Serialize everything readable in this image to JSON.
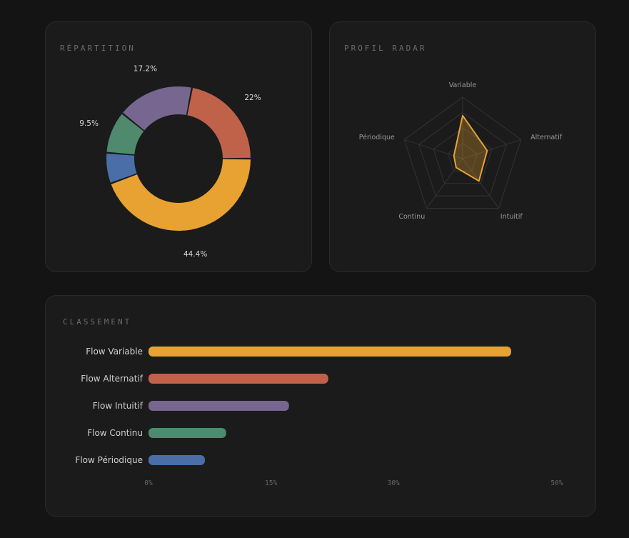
{
  "donut": {
    "title": "RÉPARTITION",
    "chart_data": {
      "type": "pie",
      "donut": true,
      "series": [
        {
          "name": "Flow Variable",
          "value": 44.4,
          "color": "#e8a231"
        },
        {
          "name": "Flow Périodique",
          "value": 6.9,
          "color": "#4a6ea8"
        },
        {
          "name": "Flow Continu",
          "value": 9.5,
          "color": "#4f8a6e"
        },
        {
          "name": "Flow Intuitif",
          "value": 17.2,
          "color": "#766690"
        },
        {
          "name": "Flow Alternatif",
          "value": 22,
          "color": "#c0624a"
        }
      ],
      "labels": [
        "44.4%",
        "",
        "9.5%",
        "17.2%",
        "22%"
      ]
    }
  },
  "radar": {
    "title": "PROFIL RADAR",
    "chart_data": {
      "type": "radar",
      "axes": [
        "Variable",
        "Alternatif",
        "Intuitif",
        "Continu",
        "Périodique"
      ],
      "values": [
        0.7,
        0.42,
        0.45,
        0.18,
        0.15
      ],
      "levels": 4,
      "color": "#e8a231"
    }
  },
  "bars": {
    "title": "CLASSEMENT",
    "chart_data": {
      "type": "bar",
      "orientation": "horizontal",
      "categories": [
        "Flow Variable",
        "Flow Alternatif",
        "Flow Intuitif",
        "Flow Continu",
        "Flow Périodique"
      ],
      "values": [
        44.4,
        22,
        17.2,
        9.5,
        6.9
      ],
      "colors": [
        "#e8a231",
        "#c0624a",
        "#766690",
        "#4f8a6e",
        "#4a6ea8"
      ],
      "ticks": [
        "0%",
        "15%",
        "30%",
        "50%"
      ],
      "tick_values": [
        0,
        15,
        30,
        50
      ]
    }
  }
}
